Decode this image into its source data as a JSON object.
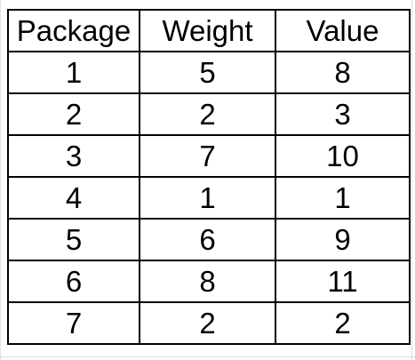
{
  "table": {
    "columns": [
      "Package",
      "Weight",
      "Value"
    ],
    "rows": [
      [
        "1",
        "5",
        "8"
      ],
      [
        "2",
        "2",
        "3"
      ],
      [
        "3",
        "7",
        "10"
      ],
      [
        "4",
        "1",
        "1"
      ],
      [
        "5",
        "6",
        "9"
      ],
      [
        "6",
        "8",
        "11"
      ],
      [
        "7",
        "2",
        "2"
      ]
    ]
  }
}
